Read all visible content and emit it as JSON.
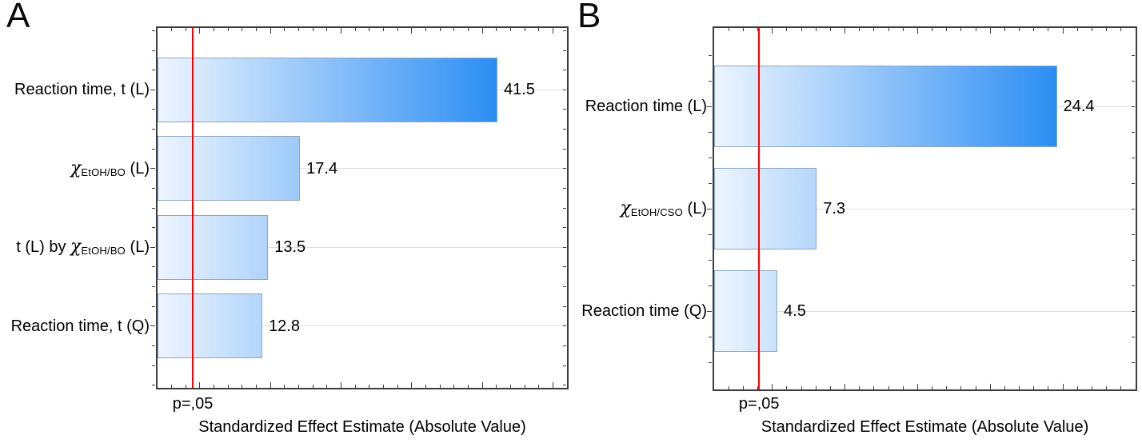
{
  "chart_data": [
    {
      "type": "bar",
      "orientation": "horizontal",
      "panel_label": "A",
      "xlabel": "Standardized Effect Estimate (Absolute Value)",
      "ylabel": "",
      "xlim": [
        0,
        50
      ],
      "grid": "horizontal category gridlines",
      "legend": "none",
      "p_line": {
        "label": "p=,05",
        "value": 4.3,
        "color": "#ff0000"
      },
      "categories": [
        {
          "label": "Reaction time, t (L)",
          "parts": [
            {
              "text": "Reaction time, t (L)"
            }
          ]
        },
        {
          "label": "χEtOH/BO (L)",
          "parts": [
            {
              "text": "χ",
              "chi": true
            },
            {
              "text": "EtOH/BO",
              "sub": true
            },
            {
              "text": " (L)"
            }
          ]
        },
        {
          "label": "t (L) by χEtOH/BO (L)",
          "parts": [
            {
              "text": "t (L) by "
            },
            {
              "text": "χ",
              "chi": true
            },
            {
              "text": "EtOH/BO",
              "sub": true
            },
            {
              "text": " (L)"
            }
          ]
        },
        {
          "label": "Reaction time, t (Q)",
          "parts": [
            {
              "text": "Reaction time, t (Q)"
            }
          ]
        }
      ],
      "values": [
        41.5,
        17.4,
        13.5,
        12.8
      ],
      "value_labels": [
        "41.5",
        "17.4",
        "13.5",
        "12.8"
      ],
      "bar_gradient": [
        "#eef5fe",
        "#2b8df3"
      ],
      "bar_border_color": "#8da8c2"
    },
    {
      "type": "bar",
      "orientation": "horizontal",
      "panel_label": "B",
      "xlabel": "Standardized Effect Estimate (Absolute Value)",
      "ylabel": "",
      "xlim": [
        0,
        30
      ],
      "grid": "horizontal category gridlines",
      "legend": "none",
      "p_line": {
        "label": "p=,05",
        "value": 3.2,
        "color": "#ff0000"
      },
      "categories": [
        {
          "label": "Reaction time (L)",
          "parts": [
            {
              "text": "Reaction time (L)"
            }
          ]
        },
        {
          "label": "χEtOH/CSO (L)",
          "parts": [
            {
              "text": "χ",
              "chi": true
            },
            {
              "text": "EtOH/CSO",
              "sub": true
            },
            {
              "text": " (L)"
            }
          ]
        },
        {
          "label": "Reaction time (Q)",
          "parts": [
            {
              "text": "Reaction time (Q)"
            }
          ]
        }
      ],
      "values": [
        24.4,
        7.3,
        4.5
      ],
      "value_labels": [
        "24.4",
        "7.3",
        "4.5"
      ],
      "bar_gradient": [
        "#eef5fe",
        "#2b8df3"
      ],
      "bar_border_color": "#8da8c2"
    }
  ]
}
